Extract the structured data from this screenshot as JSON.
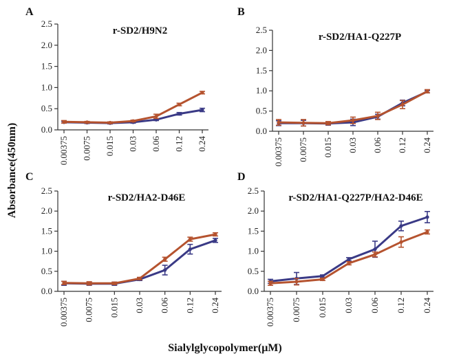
{
  "figure": {
    "ylabel": "Absorbance(450nm)",
    "xlabel": "Sialylglycopolymer(μM)"
  },
  "colors": {
    "blue_series": "#3a3a86",
    "red_series": "#b5532f"
  },
  "chart_data": [
    {
      "type": "line",
      "panel_letter": "A",
      "title": "r-SD2/H9N2",
      "categories": [
        "0.00375",
        "0.0075",
        "0.015",
        "0.03",
        "0.06",
        "0.12",
        "0.24"
      ],
      "yticks": [
        "0.0",
        "0.5",
        "1.0",
        "1.5",
        "2.0",
        "2.5"
      ],
      "ylim": [
        0,
        2.5
      ],
      "series": [
        {
          "color": "#3a3a86",
          "values": [
            0.18,
            0.17,
            0.16,
            0.18,
            0.24,
            0.38,
            0.47
          ],
          "errors": [
            0.02,
            0.02,
            0.02,
            0.02,
            0.02,
            0.03,
            0.04
          ]
        },
        {
          "color": "#b5532f",
          "values": [
            0.19,
            0.18,
            0.17,
            0.21,
            0.32,
            0.6,
            0.88
          ],
          "errors": [
            0.03,
            0.02,
            0.02,
            0.02,
            0.05,
            0.03,
            0.03
          ]
        }
      ]
    },
    {
      "type": "line",
      "panel_letter": "B",
      "title": "r-SD2/HA1-Q227P",
      "categories": [
        "0.00375",
        "0.0075",
        "0.015",
        "0.03",
        "0.06",
        "0.12",
        "0.24"
      ],
      "yticks": [
        "0.0",
        "0.5",
        "1.0",
        "1.5",
        "2.0",
        "2.5"
      ],
      "ylim": [
        0,
        2.5
      ],
      "series": [
        {
          "color": "#3a3a86",
          "values": [
            0.2,
            0.2,
            0.19,
            0.22,
            0.36,
            0.7,
            0.98
          ],
          "errors": [
            0.06,
            0.07,
            0.04,
            0.08,
            0.06,
            0.07,
            0.03
          ]
        },
        {
          "color": "#b5532f",
          "values": [
            0.22,
            0.21,
            0.2,
            0.27,
            0.38,
            0.66,
            0.99
          ],
          "errors": [
            0.07,
            0.08,
            0.04,
            0.08,
            0.09,
            0.1,
            0.04
          ]
        }
      ]
    },
    {
      "type": "line",
      "panel_letter": "C",
      "title": "r-SD2/HA2-D46E",
      "categories": [
        "0.00375",
        "0.0075",
        "0.015",
        "0.03",
        "0.06",
        "0.12",
        "0.24"
      ],
      "yticks": [
        "0.0",
        "0.5",
        "1.0",
        "1.5",
        "2.0",
        "2.5"
      ],
      "ylim": [
        0,
        2.5
      ],
      "series": [
        {
          "color": "#3a3a86",
          "values": [
            0.2,
            0.19,
            0.19,
            0.3,
            0.53,
            1.05,
            1.27
          ],
          "errors": [
            0.05,
            0.04,
            0.04,
            0.03,
            0.12,
            0.12,
            0.05
          ]
        },
        {
          "color": "#b5532f",
          "values": [
            0.21,
            0.2,
            0.2,
            0.32,
            0.8,
            1.3,
            1.42
          ],
          "errors": [
            0.04,
            0.04,
            0.03,
            0.03,
            0.05,
            0.05,
            0.04
          ]
        }
      ]
    },
    {
      "type": "line",
      "panel_letter": "D",
      "title": "r-SD2/HA1-Q227P/HA2-D46E",
      "categories": [
        "0.00375",
        "0.0075",
        "0.015",
        "0.03",
        "0.06",
        "0.12",
        "0.24"
      ],
      "yticks": [
        "0.0",
        "0.5",
        "1.0",
        "1.5",
        "2.0",
        "2.5"
      ],
      "ylim": [
        0,
        2.5
      ],
      "series": [
        {
          "color": "#3a3a86",
          "values": [
            0.25,
            0.32,
            0.38,
            0.8,
            1.05,
            1.63,
            1.85
          ],
          "errors": [
            0.05,
            0.15,
            0.03,
            0.04,
            0.2,
            0.12,
            0.14
          ]
        },
        {
          "color": "#b5532f",
          "values": [
            0.2,
            0.24,
            0.3,
            0.7,
            0.92,
            1.23,
            1.48
          ],
          "errors": [
            0.05,
            0.08,
            0.03,
            0.04,
            0.06,
            0.13,
            0.05
          ]
        }
      ]
    }
  ]
}
